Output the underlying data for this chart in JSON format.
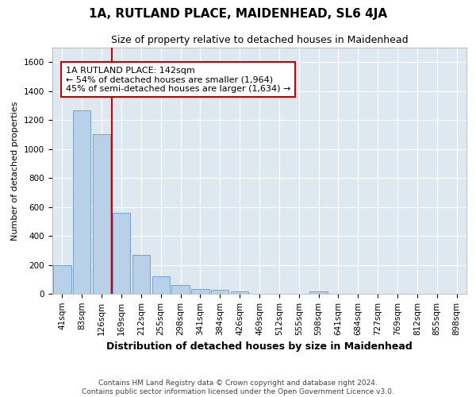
{
  "title": "1A, RUTLAND PLACE, MAIDENHEAD, SL6 4JA",
  "subtitle": "Size of property relative to detached houses in Maidenhead",
  "xlabel": "Distribution of detached houses by size in Maidenhead",
  "ylabel": "Number of detached properties",
  "footer_line1": "Contains HM Land Registry data © Crown copyright and database right 2024.",
  "footer_line2": "Contains public sector information licensed under the Open Government Licence v3.0.",
  "bar_labels": [
    "41sqm",
    "83sqm",
    "126sqm",
    "169sqm",
    "212sqm",
    "255sqm",
    "298sqm",
    "341sqm",
    "384sqm",
    "426sqm",
    "469sqm",
    "512sqm",
    "555sqm",
    "598sqm",
    "641sqm",
    "684sqm",
    "727sqm",
    "769sqm",
    "812sqm",
    "855sqm",
    "898sqm"
  ],
  "bar_values": [
    200,
    1265,
    1100,
    560,
    270,
    120,
    60,
    35,
    25,
    15,
    0,
    0,
    0,
    15,
    0,
    0,
    0,
    0,
    0,
    0,
    0
  ],
  "bar_color": "#b8d0e8",
  "bar_edge_color": "#6699cc",
  "vline_color": "#cc0000",
  "annotation_text": "1A RUTLAND PLACE: 142sqm\n← 54% of detached houses are smaller (1,964)\n45% of semi-detached houses are larger (1,634) →",
  "annotation_box_color": "#cc0000",
  "ylim": [
    0,
    1700
  ],
  "yticks": [
    0,
    200,
    400,
    600,
    800,
    1000,
    1200,
    1400,
    1600
  ],
  "plot_background": "#dde8f0",
  "fig_background": "#ffffff",
  "grid_color": "#ffffff",
  "title_fontsize": 11,
  "subtitle_fontsize": 9,
  "annotation_fontsize": 8,
  "xlabel_fontsize": 9,
  "ylabel_fontsize": 8,
  "tick_fontsize": 7.5,
  "footer_fontsize": 6.5
}
